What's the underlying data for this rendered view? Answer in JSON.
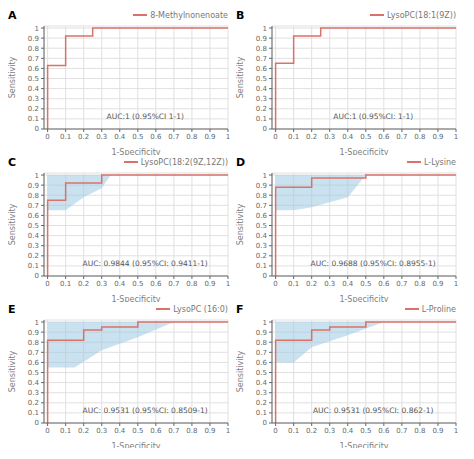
{
  "chart_data": [
    {
      "type": "line",
      "title": "A",
      "xlabel": "1-Specificity",
      "ylabel": "Sensitivity",
      "x": [
        0,
        0,
        0.1,
        0.1,
        0.25,
        0.25,
        1.0
      ],
      "series": [
        {
          "name": "8-Methylnonenoate",
          "color": "#D9736A",
          "line_style": "step",
          "values": [
            0,
            0.63,
            0.63,
            0.92,
            0.92,
            1.0,
            1.0
          ]
        }
      ],
      "annotations": [
        "AUC:1 (0.95%CI 1-1)"
      ],
      "xlim": [
        -0.02,
        1.0
      ],
      "ylim": [
        0,
        1.02
      ],
      "xticks": [
        0,
        0.1,
        0.2,
        0.3,
        0.4,
        0.5,
        0.6,
        0.7,
        0.8,
        0.9,
        1
      ],
      "yticks": [
        0,
        0.1,
        0.2,
        0.3,
        0.4,
        0.5,
        0.6,
        0.7,
        0.8,
        0.9,
        1
      ],
      "grid": true
    },
    {
      "type": "line",
      "title": "B",
      "xlabel": "1-Specificity",
      "ylabel": "Sensitivity",
      "x": [
        0,
        0,
        0.1,
        0.1,
        0.25,
        0.25,
        1.0
      ],
      "series": [
        {
          "name": "LysoPC(18:1(9Z))",
          "color": "#D9736A",
          "line_style": "step",
          "values": [
            0,
            0.65,
            0.65,
            0.92,
            0.92,
            1.0,
            1.0
          ]
        }
      ],
      "annotations": [
        "AUC:1 (0.95%CI: 1-1)"
      ],
      "xlim": [
        -0.02,
        1.0
      ],
      "ylim": [
        0,
        1.02
      ],
      "xticks": [
        0,
        0.1,
        0.2,
        0.3,
        0.4,
        0.5,
        0.6,
        0.7,
        0.8,
        0.9,
        1
      ],
      "yticks": [
        0,
        0.1,
        0.2,
        0.3,
        0.4,
        0.5,
        0.6,
        0.7,
        0.8,
        0.9,
        1
      ],
      "grid": true
    },
    {
      "type": "line",
      "title": "C",
      "xlabel": "1-Specificity",
      "ylabel": "Sensitivity",
      "x": [
        0,
        0,
        0.1,
        0.1,
        0.2,
        0.3,
        0.3,
        1.0
      ],
      "series": [
        {
          "name": "LysoPC(18:2(9Z,12Z))",
          "color": "#D9736A",
          "line_style": "step",
          "values": [
            0,
            0.75,
            0.75,
            0.92,
            0.92,
            1.0,
            1.0,
            1.0
          ]
        }
      ],
      "ci_band": {
        "color": "#9ECAE1",
        "upper_x": [
          0,
          0,
          0.1,
          0.2,
          0.3,
          1.0
        ],
        "upper": [
          0,
          1.0,
          1.0,
          1.0,
          1.0,
          1.0
        ],
        "lower_x": [
          0,
          0,
          0.1,
          0.2,
          0.3,
          0.35,
          1.0
        ],
        "lower": [
          0,
          0.65,
          0.65,
          0.78,
          0.87,
          1.0,
          1.0
        ]
      },
      "annotations": [
        "AUC: 0.9844 (0.95%CI: 0.9411-1)"
      ],
      "xlim": [
        -0.02,
        1.0
      ],
      "ylim": [
        0,
        1.02
      ],
      "xticks": [
        0,
        0.1,
        0.2,
        0.3,
        0.4,
        0.5,
        0.6,
        0.7,
        0.8,
        0.9,
        1
      ],
      "yticks": [
        0,
        0.1,
        0.2,
        0.3,
        0.4,
        0.5,
        0.6,
        0.7,
        0.8,
        0.9,
        1
      ],
      "grid": true
    },
    {
      "type": "line",
      "title": "D",
      "xlabel": "1-Specificity",
      "ylabel": "Sensitivity",
      "x": [
        0,
        0,
        0.1,
        0.2,
        0.3,
        0.5,
        0.5,
        1.0
      ],
      "series": [
        {
          "name": "L-Lysine",
          "color": "#D9736A",
          "line_style": "step",
          "values": [
            0,
            0.88,
            0.88,
            0.97,
            0.97,
            1.0,
            1.0,
            1.0
          ]
        }
      ],
      "ci_band": {
        "color": "#9ECAE1",
        "upper_x": [
          0,
          0,
          0.1,
          0.2,
          0.3,
          1.0
        ],
        "upper": [
          0,
          1.0,
          1.0,
          1.0,
          1.0,
          1.0
        ],
        "lower_x": [
          0,
          0,
          0.1,
          0.2,
          0.4,
          0.5,
          1.0
        ],
        "lower": [
          0,
          0.65,
          0.65,
          0.68,
          0.78,
          1.0,
          1.0
        ]
      },
      "annotations": [
        "AUC: 0.9688 (0.95%CI: 0.8955-1)"
      ],
      "xlim": [
        -0.02,
        1.0
      ],
      "ylim": [
        0,
        1.02
      ],
      "xticks": [
        0,
        0.1,
        0.2,
        0.3,
        0.4,
        0.5,
        0.6,
        0.7,
        0.8,
        0.9,
        1
      ],
      "yticks": [
        0,
        0.1,
        0.2,
        0.3,
        0.4,
        0.5,
        0.6,
        0.7,
        0.8,
        0.9,
        1
      ],
      "grid": true
    },
    {
      "type": "line",
      "title": "E",
      "xlabel": "1-Specificity",
      "ylabel": "Sensitivity",
      "x": [
        0,
        0,
        0.1,
        0.2,
        0.3,
        0.5,
        0.5,
        1.0
      ],
      "series": [
        {
          "name": "LysoPC (16:0)",
          "color": "#D9736A",
          "line_style": "step",
          "values": [
            0,
            0.82,
            0.82,
            0.92,
            0.95,
            1.0,
            1.0,
            1.0
          ]
        }
      ],
      "ci_band": {
        "color": "#9ECAE1",
        "upper_x": [
          0,
          0,
          0.1,
          0.2,
          0.3,
          1.0
        ],
        "upper": [
          0,
          1.0,
          1.0,
          1.0,
          1.0,
          1.0
        ],
        "lower_x": [
          0,
          0,
          0.15,
          0.3,
          0.5,
          0.7,
          1.0
        ],
        "lower": [
          0,
          0.55,
          0.55,
          0.72,
          0.85,
          1.0,
          1.0
        ]
      },
      "annotations": [
        "AUC: 0.9531 (0.95%CI: 0.8509-1)"
      ],
      "xlim": [
        -0.02,
        1.0
      ],
      "ylim": [
        0,
        1.02
      ],
      "xticks": [
        0,
        0.1,
        0.2,
        0.3,
        0.4,
        0.5,
        0.6,
        0.7,
        0.8,
        0.9,
        1
      ],
      "yticks": [
        0,
        0.1,
        0.2,
        0.3,
        0.4,
        0.5,
        0.6,
        0.7,
        0.8,
        0.9,
        1
      ],
      "grid": true
    },
    {
      "type": "line",
      "title": "F",
      "xlabel": "1-Specificity",
      "ylabel": "Sensitivity",
      "x": [
        0,
        0,
        0.1,
        0.2,
        0.3,
        0.5,
        0.5,
        1.0
      ],
      "series": [
        {
          "name": "L-Proline",
          "color": "#D9736A",
          "line_style": "step",
          "values": [
            0,
            0.82,
            0.82,
            0.92,
            0.95,
            1.0,
            1.0,
            1.0
          ]
        }
      ],
      "ci_band": {
        "color": "#9ECAE1",
        "upper_x": [
          0,
          0,
          0.1,
          0.2,
          1.0
        ],
        "upper": [
          0,
          1.0,
          1.0,
          1.0,
          1.0
        ],
        "lower_x": [
          0,
          0,
          0.1,
          0.2,
          0.4,
          0.6,
          1.0
        ],
        "lower": [
          0,
          0.6,
          0.6,
          0.75,
          0.87,
          1.0,
          1.0
        ]
      },
      "annotations": [
        "AUC: 0.9531 (0.95%CI: 0.862-1)"
      ],
      "xlim": [
        -0.02,
        1.0
      ],
      "ylim": [
        0,
        1.02
      ],
      "xticks": [
        0,
        0.1,
        0.2,
        0.3,
        0.4,
        0.5,
        0.6,
        0.7,
        0.8,
        0.9,
        1
      ],
      "yticks": [
        0,
        0.1,
        0.2,
        0.3,
        0.4,
        0.5,
        0.6,
        0.7,
        0.8,
        0.9,
        1
      ],
      "grid": true
    }
  ]
}
